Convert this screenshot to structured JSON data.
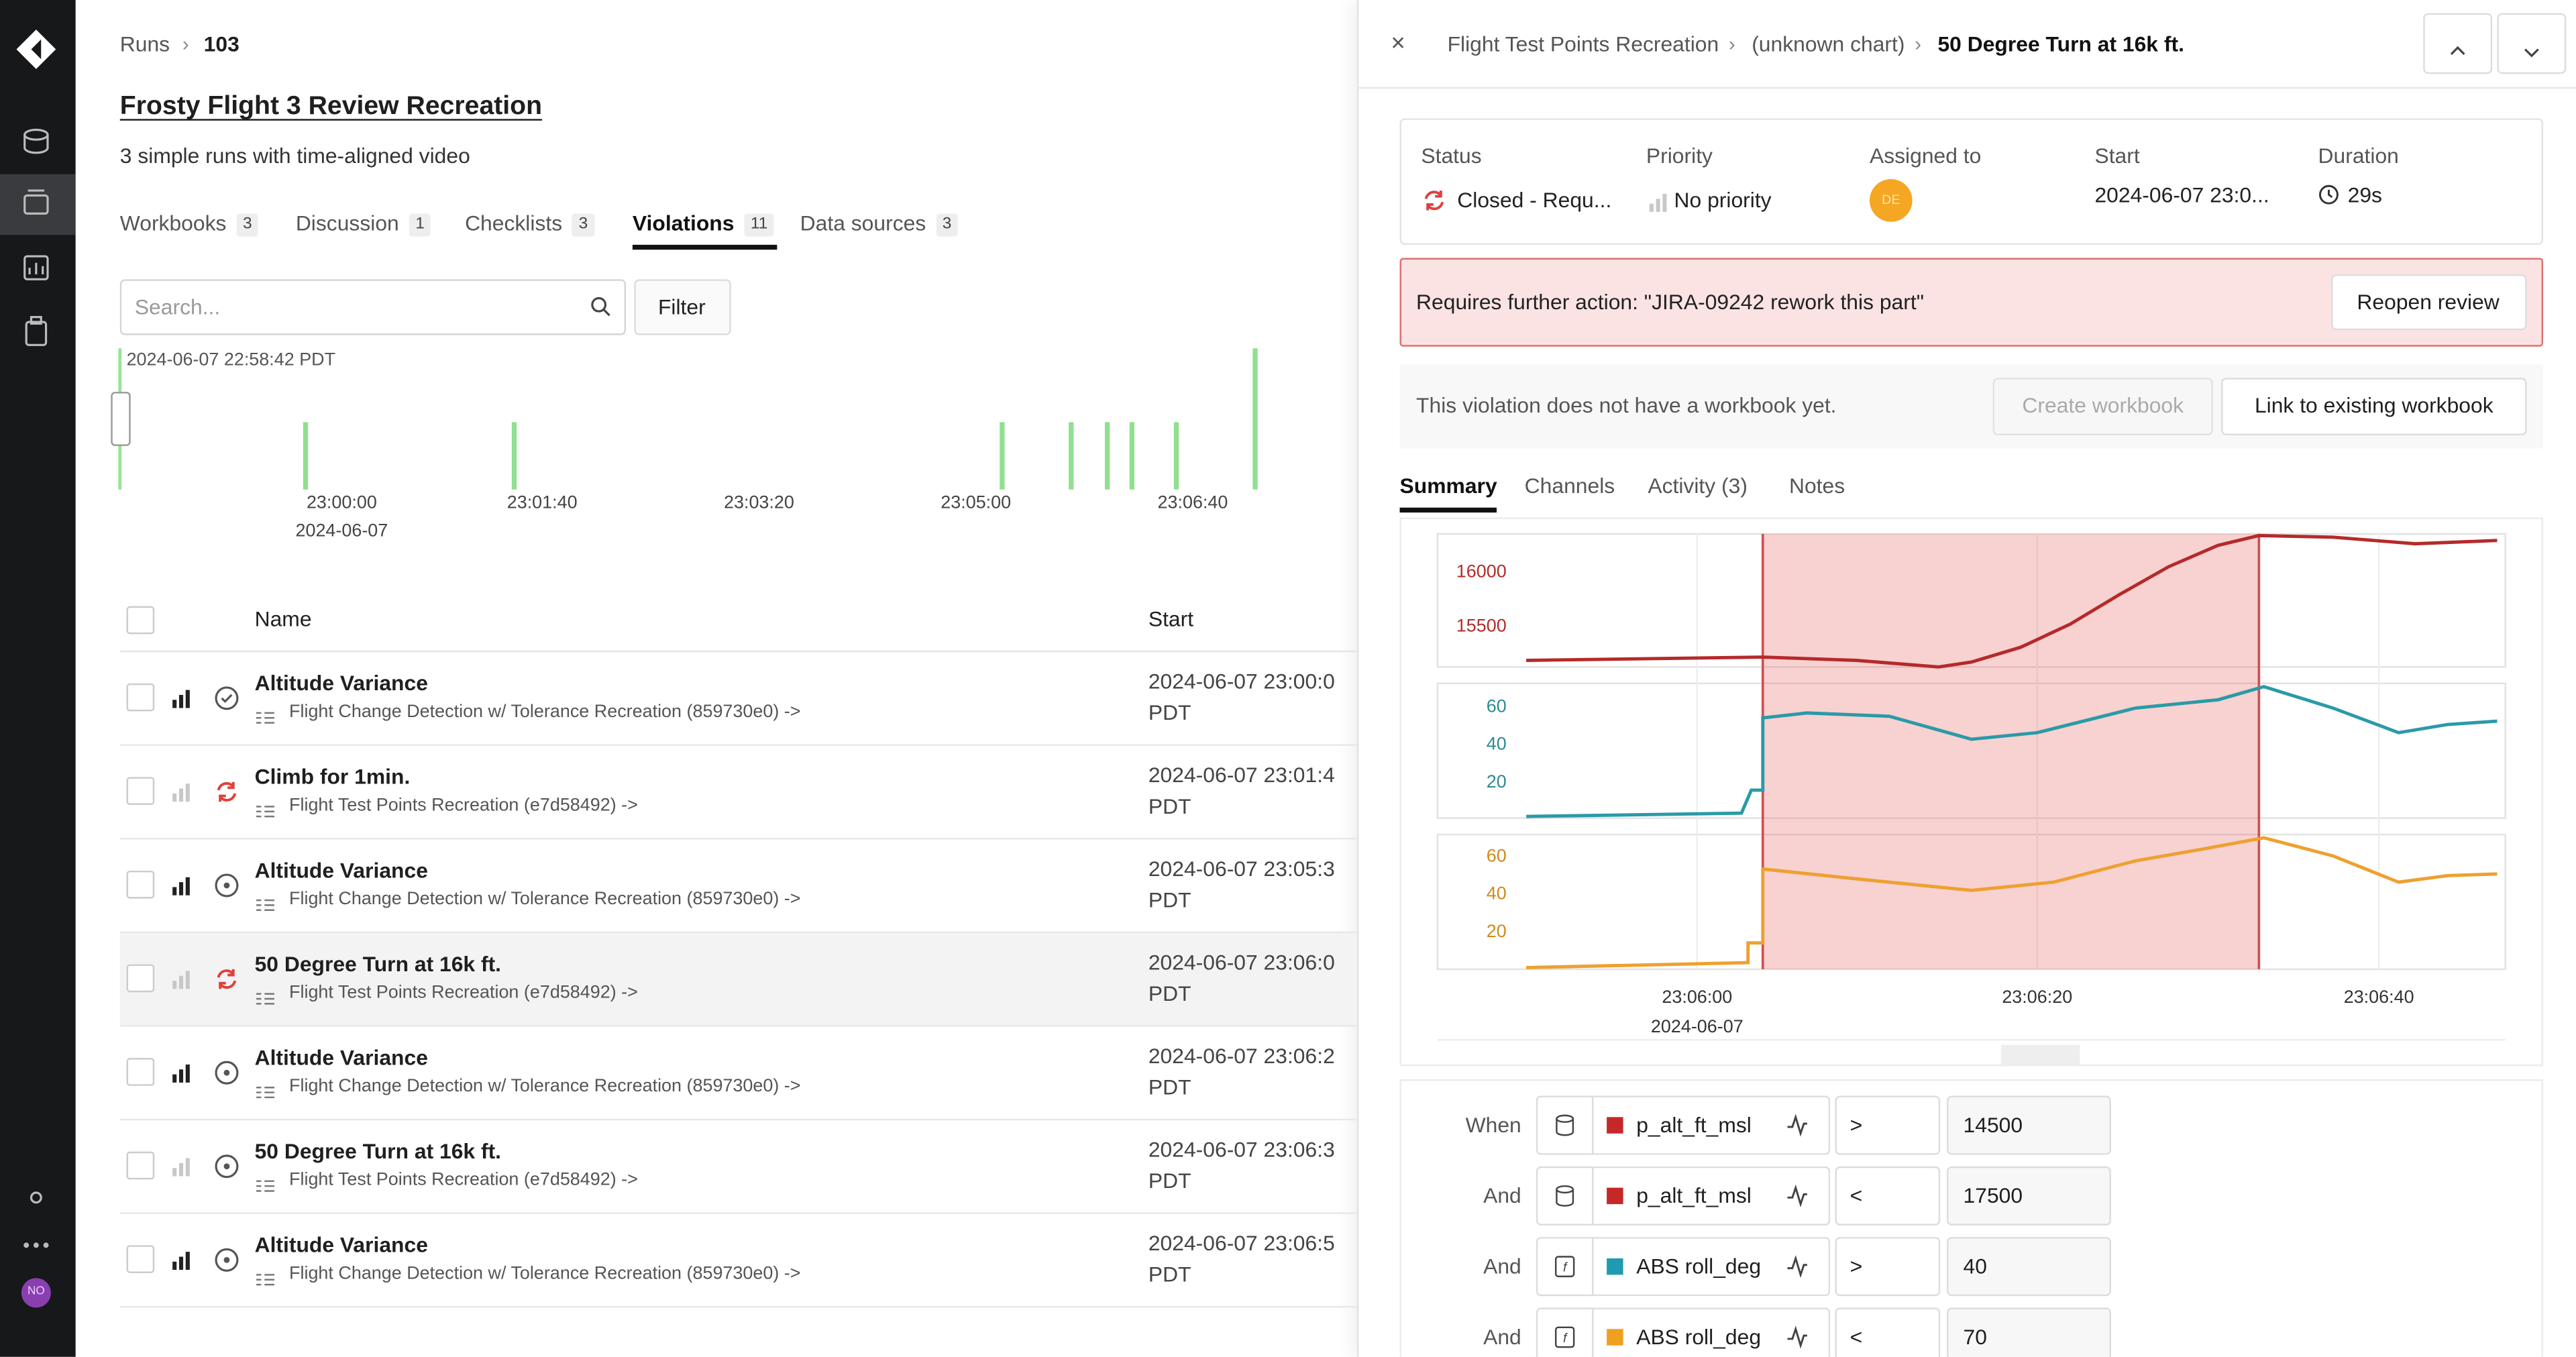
{
  "sidebar": {
    "avatar": "NO"
  },
  "breadcrumb": [
    "Runs",
    "103"
  ],
  "header": {
    "title": "Frosty Flight 3 Review Recreation",
    "subtitle": "3 simple runs with time-aligned video"
  },
  "tabs": [
    {
      "label": "Workbooks",
      "count": "3"
    },
    {
      "label": "Discussion",
      "count": "1"
    },
    {
      "label": "Checklists",
      "count": "3"
    },
    {
      "label": "Violations",
      "count": "11"
    },
    {
      "label": "Data sources",
      "count": "3"
    }
  ],
  "search": {
    "placeholder": "Search...",
    "filter": "Filter"
  },
  "timeline": {
    "start": "2024-06-07 22:58:42 PDT",
    "ticks": [
      "23:00:00",
      "23:01:40",
      "23:03:20",
      "23:05:00",
      "23:06:40"
    ],
    "date": "2024-06-07"
  },
  "table": {
    "headers": [
      "Name",
      "Start"
    ],
    "rows": [
      {
        "name": "Altitude Variance",
        "source": "Flight Change Detection w/ Tolerance Recreation (859730e0) ->",
        "start": "2024-06-07 23:00:0",
        "tz": "PDT"
      },
      {
        "name": "Climb for 1min.",
        "source": "Flight Test Points Recreation (e7d58492) ->",
        "start": "2024-06-07 23:01:4",
        "tz": "PDT"
      },
      {
        "name": "Altitude Variance",
        "source": "Flight Change Detection w/ Tolerance Recreation (859730e0) ->",
        "start": "2024-06-07 23:05:3",
        "tz": "PDT"
      },
      {
        "name": "50 Degree Turn at 16k ft.",
        "source": "Flight Test Points Recreation (e7d58492) ->",
        "start": "2024-06-07 23:06:0",
        "tz": "PDT"
      },
      {
        "name": "Altitude Variance",
        "source": "Flight Change Detection w/ Tolerance Recreation (859730e0) ->",
        "start": "2024-06-07 23:06:2",
        "tz": "PDT"
      },
      {
        "name": "50 Degree Turn at 16k ft.",
        "source": "Flight Test Points Recreation (e7d58492) ->",
        "start": "2024-06-07 23:06:3",
        "tz": "PDT"
      },
      {
        "name": "Altitude Variance",
        "source": "Flight Change Detection w/ Tolerance Recreation (859730e0) ->",
        "start": "2024-06-07 23:06:5",
        "tz": "PDT"
      }
    ]
  },
  "panel": {
    "breadcrumb": [
      "Flight Test Points Recreation",
      "(unknown chart)",
      "50 Degree Turn at 16k ft."
    ],
    "fields": [
      {
        "label": "Status",
        "value": "Closed - Requ..."
      },
      {
        "label": "Priority",
        "value": "No priority"
      },
      {
        "label": "Assigned to",
        "value": "DE"
      },
      {
        "label": "Start",
        "value": "2024-06-07 23:0..."
      },
      {
        "label": "Duration",
        "value": "29s"
      }
    ],
    "alert": {
      "text": "Requires further action: \"JIRA-09242 rework this part\"",
      "button": "Reopen review"
    },
    "workbook": {
      "text": "This violation does not have a workbook yet.",
      "create": "Create workbook",
      "link": "Link to existing workbook"
    },
    "tabs": [
      "Summary",
      "Channels",
      "Activity (3)",
      "Notes"
    ],
    "chart": {
      "panels": [
        {
          "yticks": [
            "16000",
            "15500"
          ]
        },
        {
          "yticks": [
            "60",
            "40",
            "20"
          ]
        },
        {
          "yticks": [
            "60",
            "40",
            "20"
          ]
        }
      ],
      "xticks": [
        "23:06:00",
        "23:06:20",
        "23:06:40"
      ],
      "date": "2024-06-07"
    },
    "conditions": [
      {
        "connector": "When",
        "channel": "p_alt_ft_msl",
        "color": "#c62828",
        "op": ">",
        "value": "14500"
      },
      {
        "connector": "And",
        "channel": "p_alt_ft_msl",
        "color": "#c62828",
        "op": "<",
        "value": "17500"
      },
      {
        "connector": "And",
        "channel": "ABS roll_deg",
        "color": "#1e9bb0",
        "op": ">",
        "value": "40"
      },
      {
        "connector": "And",
        "channel": "ABS roll_deg",
        "color": "#f0a020",
        "op": "<",
        "value": "70"
      }
    ]
  }
}
